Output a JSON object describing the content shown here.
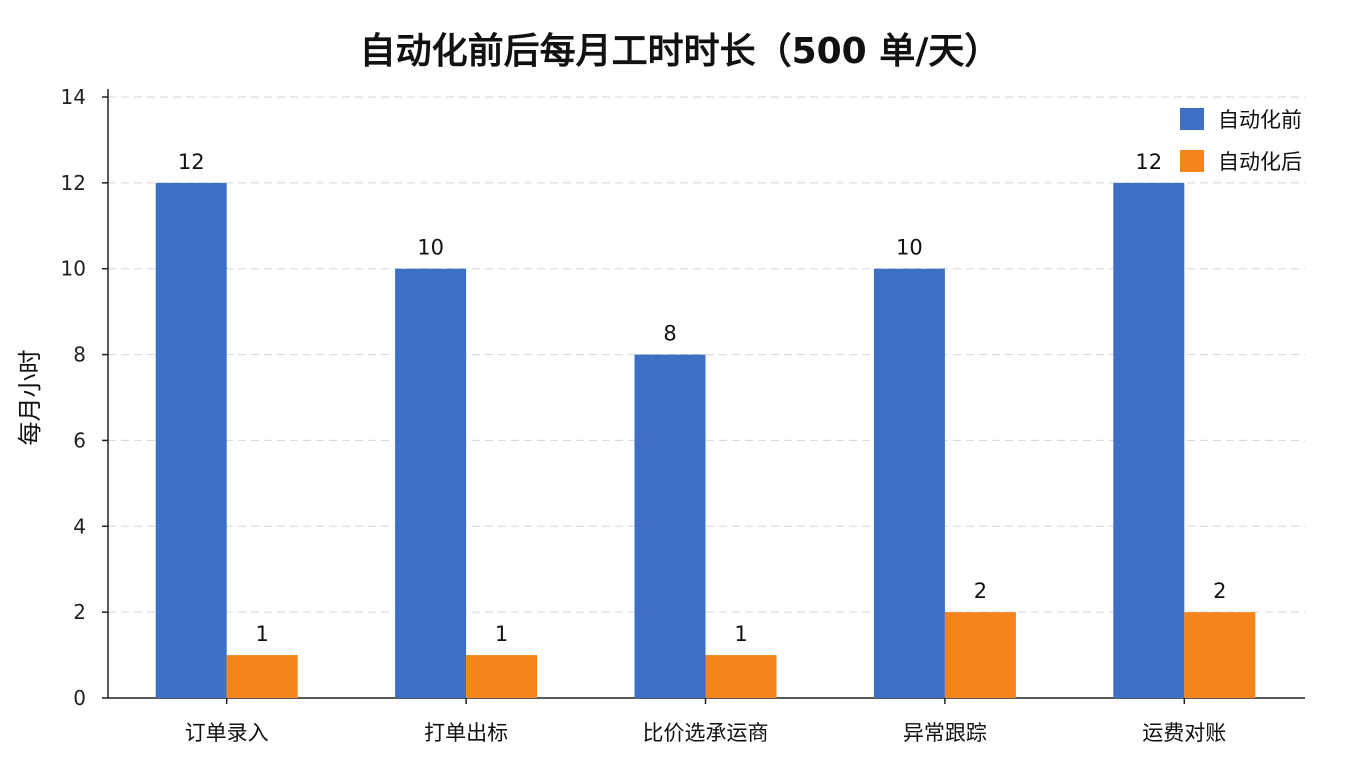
{
  "chart_data": {
    "type": "bar",
    "title": "自动化前后每月工时时长（500 单/天）",
    "ylabel": "每月小时",
    "xlabel": "",
    "categories": [
      "订单录入",
      "打单出标",
      "比价选承运商",
      "异常跟踪",
      "运费对账"
    ],
    "series": [
      {
        "name": "自动化前",
        "values": [
          12,
          10,
          8,
          10,
          12
        ],
        "color": "#3d70c4"
      },
      {
        "name": "自动化后",
        "values": [
          1,
          1,
          1,
          2,
          2
        ],
        "color": "#f5841d"
      }
    ],
    "ylim": [
      0,
      14
    ],
    "yticks": [
      0,
      2,
      4,
      6,
      8,
      10,
      12,
      14
    ],
    "grid": "horizontal-dashed",
    "legend": "top-right",
    "data_labels": true
  }
}
